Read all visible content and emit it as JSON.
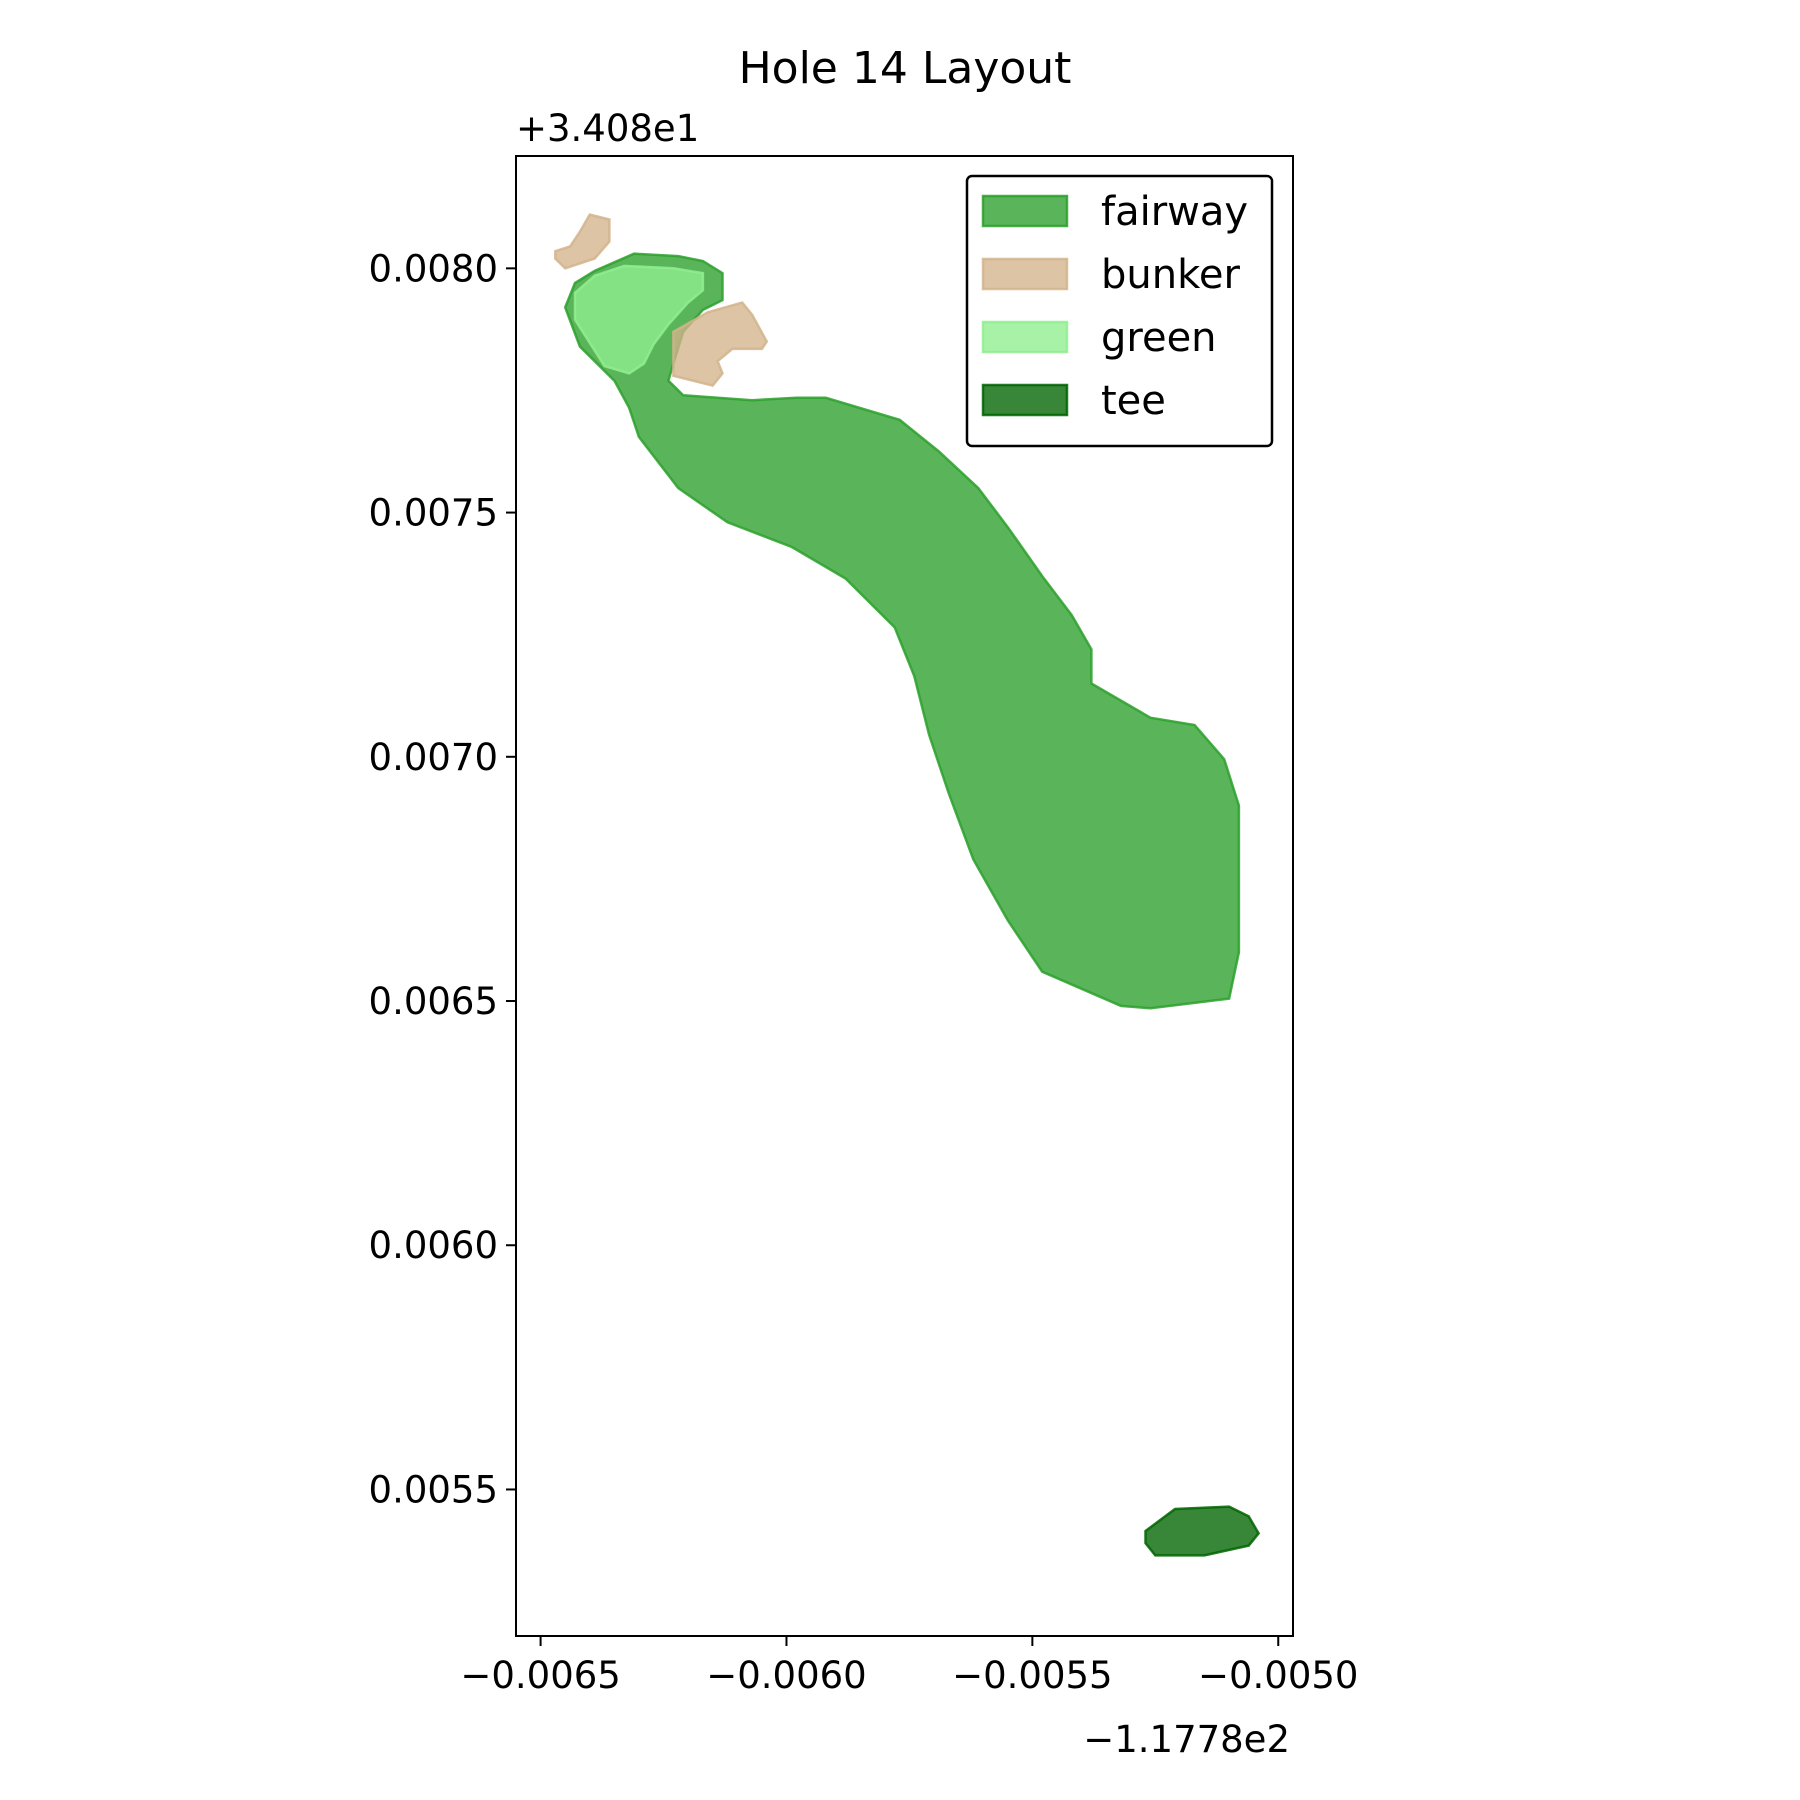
{
  "chart_data": {
    "type": "area",
    "title": "Hole 14 Layout",
    "xlabel": "",
    "ylabel": "",
    "x_offset_label": "−1.1778e2",
    "y_offset_label": "+3.408e1",
    "xlim": [
      -0.00655,
      -0.00497
    ],
    "ylim": [
      0.0052,
      0.00823
    ],
    "x_ticks": [
      {
        "value": -0.0065,
        "label": "−0.0065"
      },
      {
        "value": -0.006,
        "label": "−0.0060"
      },
      {
        "value": -0.0055,
        "label": "−0.0055"
      },
      {
        "value": -0.005,
        "label": "−0.0050"
      }
    ],
    "y_ticks": [
      {
        "value": 0.008,
        "label": "0.0080"
      },
      {
        "value": 0.0075,
        "label": "0.0075"
      },
      {
        "value": 0.007,
        "label": "0.0070"
      },
      {
        "value": 0.0065,
        "label": "0.0065"
      },
      {
        "value": 0.006,
        "label": "0.0060"
      },
      {
        "value": 0.0055,
        "label": "0.0055"
      }
    ],
    "grid": false,
    "legend_position": "top-right",
    "series": [
      {
        "name": "fairway",
        "fill": "#2ca02c",
        "stroke": "#2ca02c",
        "polygons": [
          [
            [
              -0.00645,
              0.00792
            ],
            [
              -0.00643,
              0.00797
            ],
            [
              -0.00639,
              0.007995
            ],
            [
              -0.00631,
              0.00803
            ],
            [
              -0.00622,
              0.008025
            ],
            [
              -0.00617,
              0.008015
            ],
            [
              -0.00613,
              0.00799
            ],
            [
              -0.00613,
              0.007935
            ],
            [
              -0.00617,
              0.007915
            ],
            [
              -0.00621,
              0.00787
            ],
            [
              -0.00623,
              0.007805
            ],
            [
              -0.00624,
              0.00777
            ],
            [
              -0.00621,
              0.00774
            ],
            [
              -0.00607,
              0.00773
            ],
            [
              -0.00598,
              0.007735
            ],
            [
              -0.00592,
              0.007735
            ],
            [
              -0.00577,
              0.00769
            ],
            [
              -0.00569,
              0.007625
            ],
            [
              -0.00561,
              0.00755
            ],
            [
              -0.00555,
              0.00747
            ],
            [
              -0.00548,
              0.00737
            ],
            [
              -0.00542,
              0.00729
            ],
            [
              -0.00538,
              0.00722
            ],
            [
              -0.00538,
              0.00715
            ],
            [
              -0.00526,
              0.00708
            ],
            [
              -0.00517,
              0.007065
            ],
            [
              -0.00511,
              0.006995
            ],
            [
              -0.00508,
              0.0069
            ],
            [
              -0.00508,
              0.00672
            ],
            [
              -0.00508,
              0.0066
            ],
            [
              -0.0051,
              0.006505
            ],
            [
              -0.00526,
              0.006485
            ],
            [
              -0.00532,
              0.00649
            ],
            [
              -0.00548,
              0.00656
            ],
            [
              -0.00555,
              0.006665
            ],
            [
              -0.00562,
              0.00679
            ],
            [
              -0.00567,
              0.006925
            ],
            [
              -0.00571,
              0.007045
            ],
            [
              -0.00574,
              0.007165
            ],
            [
              -0.00578,
              0.007265
            ],
            [
              -0.00588,
              0.007365
            ],
            [
              -0.00599,
              0.00743
            ],
            [
              -0.00612,
              0.00748
            ],
            [
              -0.00622,
              0.00755
            ],
            [
              -0.0063,
              0.007655
            ],
            [
              -0.00632,
              0.007715
            ],
            [
              -0.00635,
              0.00777
            ],
            [
              -0.00642,
              0.00784
            ]
          ]
        ]
      },
      {
        "name": "bunker",
        "fill": "#d2b48c",
        "stroke": "#d2b48c",
        "polygons": [
          [
            [
              -0.00647,
              0.008035
            ],
            [
              -0.00644,
              0.008045
            ],
            [
              -0.00642,
              0.008075
            ],
            [
              -0.0064,
              0.00811
            ],
            [
              -0.00636,
              0.0081
            ],
            [
              -0.00636,
              0.008055
            ],
            [
              -0.00639,
              0.00802
            ],
            [
              -0.00645,
              0.008
            ],
            [
              -0.00647,
              0.00802
            ]
          ],
          [
            [
              -0.00623,
              0.007825
            ],
            [
              -0.00623,
              0.00778
            ],
            [
              -0.00615,
              0.00776
            ],
            [
              -0.00613,
              0.007785
            ],
            [
              -0.00614,
              0.00781
            ],
            [
              -0.00611,
              0.007835
            ],
            [
              -0.00605,
              0.007835
            ],
            [
              -0.00604,
              0.00785
            ],
            [
              -0.00607,
              0.007905
            ],
            [
              -0.00609,
              0.00793
            ],
            [
              -0.00616,
              0.00791
            ],
            [
              -0.00623,
              0.00787
            ]
          ]
        ]
      },
      {
        "name": "green",
        "fill": "#90ee90",
        "stroke": "#90ee90",
        "polygons": [
          [
            [
              -0.00643,
              0.007895
            ],
            [
              -0.00643,
              0.00795
            ],
            [
              -0.00639,
              0.007985
            ],
            [
              -0.00633,
              0.008005
            ],
            [
              -0.00623,
              0.008
            ],
            [
              -0.00617,
              0.00799
            ],
            [
              -0.00617,
              0.007955
            ],
            [
              -0.0062,
              0.00793
            ],
            [
              -0.00624,
              0.007885
            ],
            [
              -0.00627,
              0.007845
            ],
            [
              -0.00629,
              0.007805
            ],
            [
              -0.00632,
              0.007785
            ],
            [
              -0.00637,
              0.0078
            ]
          ]
        ]
      },
      {
        "name": "tee",
        "fill": "#006400",
        "stroke": "#006400",
        "polygons": [
          [
            [
              -0.00527,
              0.005415
            ],
            [
              -0.00521,
              0.00546
            ],
            [
              -0.0051,
              0.005465
            ],
            [
              -0.00506,
              0.005445
            ],
            [
              -0.00504,
              0.00541
            ],
            [
              -0.00506,
              0.005385
            ],
            [
              -0.00515,
              0.005365
            ],
            [
              -0.00525,
              0.005365
            ],
            [
              -0.00527,
              0.00539
            ]
          ]
        ]
      }
    ]
  }
}
